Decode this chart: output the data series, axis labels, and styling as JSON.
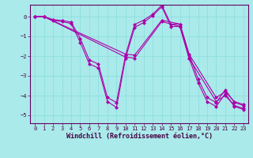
{
  "xlabel": "Windchill (Refroidissement éolien,°C)",
  "bg_color": "#aaeaea",
  "line_color": "#aa00aa",
  "xlim": [
    -0.5,
    23.5
  ],
  "ylim": [
    -5.4,
    0.6
  ],
  "yticks": [
    0,
    -1,
    -2,
    -3,
    -4,
    -5
  ],
  "xticks": [
    0,
    1,
    2,
    3,
    4,
    5,
    6,
    7,
    8,
    9,
    10,
    11,
    12,
    13,
    14,
    15,
    16,
    17,
    18,
    19,
    20,
    21,
    22,
    23
  ],
  "series": [
    {
      "x": [
        0,
        1,
        2,
        3,
        4,
        5,
        6,
        7,
        8,
        9,
        10,
        11,
        12,
        13,
        14,
        15,
        16,
        17,
        18,
        19,
        20,
        21,
        22,
        23
      ],
      "y": [
        0,
        0,
        -0.2,
        -0.25,
        -0.35,
        -1.3,
        -2.4,
        -2.6,
        -4.3,
        -4.6,
        -2.1,
        -0.55,
        -0.3,
        0.05,
        0.5,
        -0.5,
        -0.5,
        -2.1,
        -3.35,
        -4.3,
        -4.55,
        -3.9,
        -4.55,
        -4.7
      ]
    },
    {
      "x": [
        0,
        1,
        2,
        3,
        4,
        5,
        6,
        7,
        8,
        9,
        10,
        11,
        12,
        13,
        14,
        15,
        16,
        17,
        18,
        19,
        20,
        21,
        22,
        23
      ],
      "y": [
        0,
        0,
        -0.15,
        -0.2,
        -0.28,
        -1.1,
        -2.2,
        -2.4,
        -4.1,
        -4.35,
        -1.95,
        -0.4,
        -0.18,
        0.12,
        0.58,
        -0.38,
        -0.38,
        -1.9,
        -3.15,
        -4.1,
        -4.35,
        -3.7,
        -4.35,
        -4.5
      ]
    },
    {
      "x": [
        0,
        1,
        10,
        11,
        14,
        16,
        17,
        20,
        21,
        22,
        23
      ],
      "y": [
        0,
        0,
        -2.05,
        -2.1,
        -0.25,
        -0.5,
        -2.1,
        -4.3,
        -4.0,
        -4.5,
        -4.65
      ]
    },
    {
      "x": [
        0,
        1,
        10,
        11,
        14,
        16,
        17,
        20,
        21,
        22,
        23
      ],
      "y": [
        0,
        0,
        -1.9,
        -1.95,
        -0.18,
        -0.38,
        -1.9,
        -4.1,
        -3.8,
        -4.3,
        -4.45
      ]
    }
  ],
  "grid_color": "#88dddd",
  "tick_fontsize": 5,
  "xlabel_fontsize": 6,
  "marker_size": 2.5,
  "line_width": 0.8
}
